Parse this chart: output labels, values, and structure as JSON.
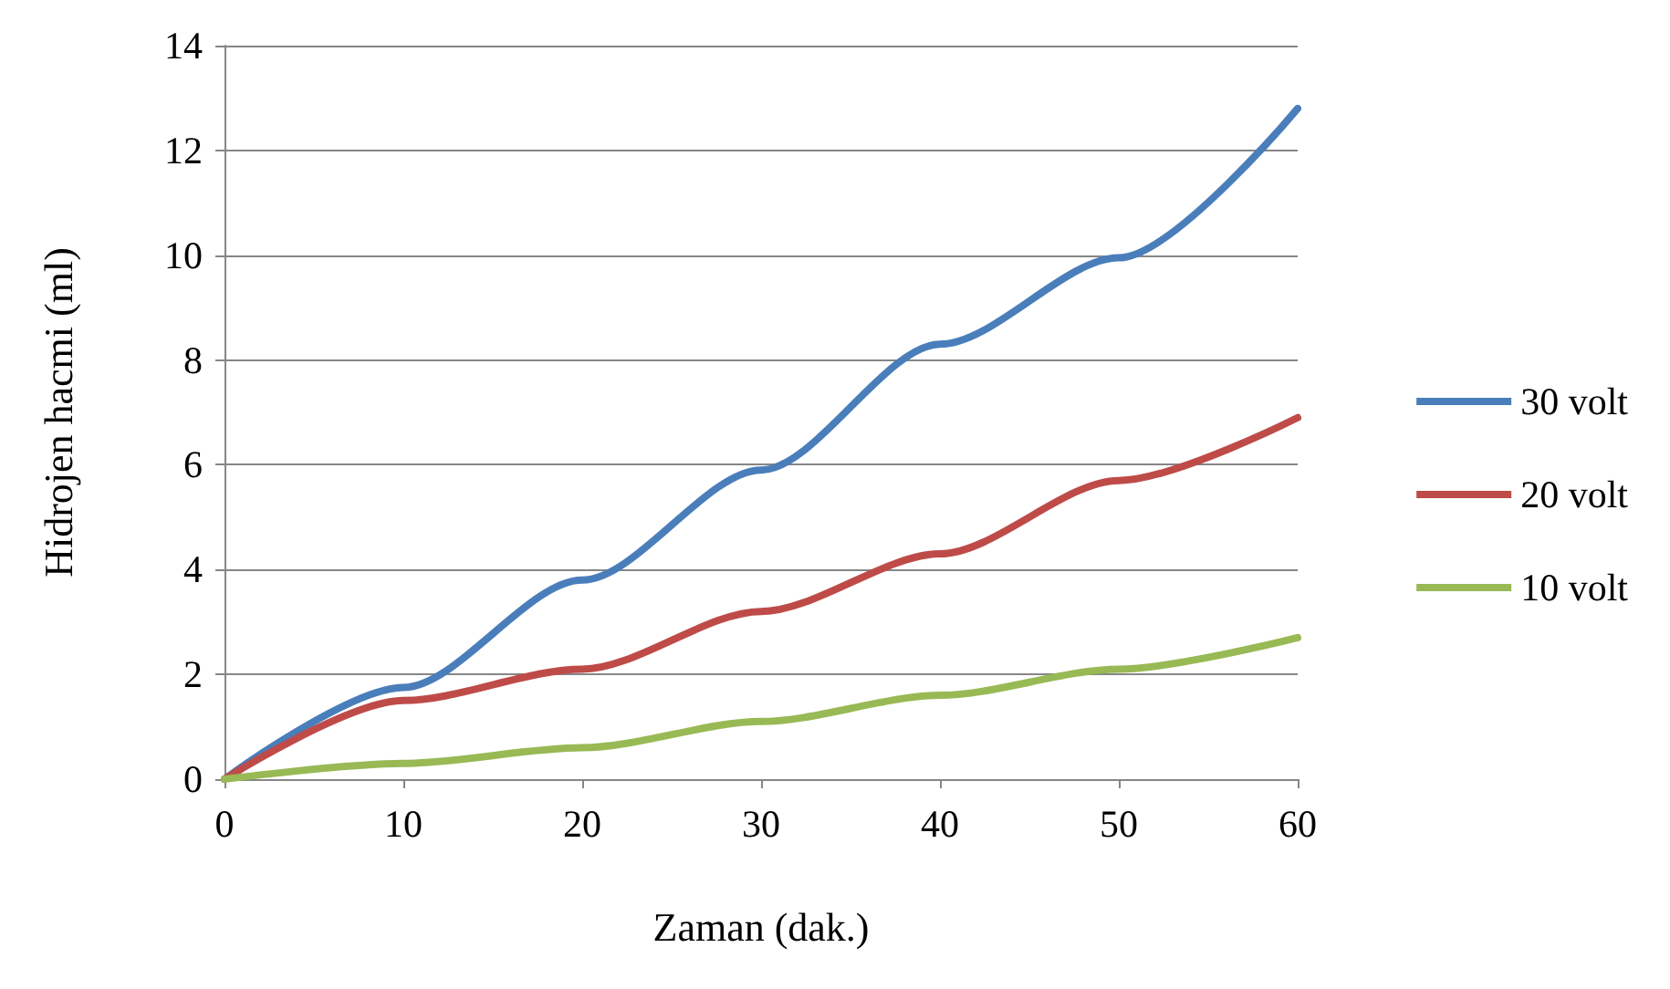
{
  "chart_data": {
    "type": "line",
    "xlabel": "Zaman (dak.)",
    "ylabel": "Hidrojen hacmi (ml)",
    "x": [
      0,
      10,
      20,
      30,
      40,
      50,
      60
    ],
    "series": [
      {
        "name": "30 volt",
        "color": "#4a7ebb",
        "values": [
          0,
          1.75,
          3.8,
          5.9,
          8.3,
          9.95,
          12.8
        ]
      },
      {
        "name": "20 volt",
        "color": "#be4b48",
        "values": [
          0,
          1.5,
          2.1,
          3.2,
          4.3,
          5.7,
          6.9
        ]
      },
      {
        "name": "10 volt",
        "color": "#98b954",
        "values": [
          0,
          0.3,
          0.6,
          1.1,
          1.6,
          2.1,
          2.7
        ]
      }
    ],
    "xlim": [
      0,
      60
    ],
    "xticks": [
      0,
      10,
      20,
      30,
      40,
      50,
      60
    ],
    "ylim": [
      0,
      14
    ],
    "yticks": [
      0,
      2,
      4,
      6,
      8,
      10,
      12,
      14
    ],
    "grid": "y",
    "legend": "right",
    "marker": "none",
    "line_style": "solid"
  }
}
